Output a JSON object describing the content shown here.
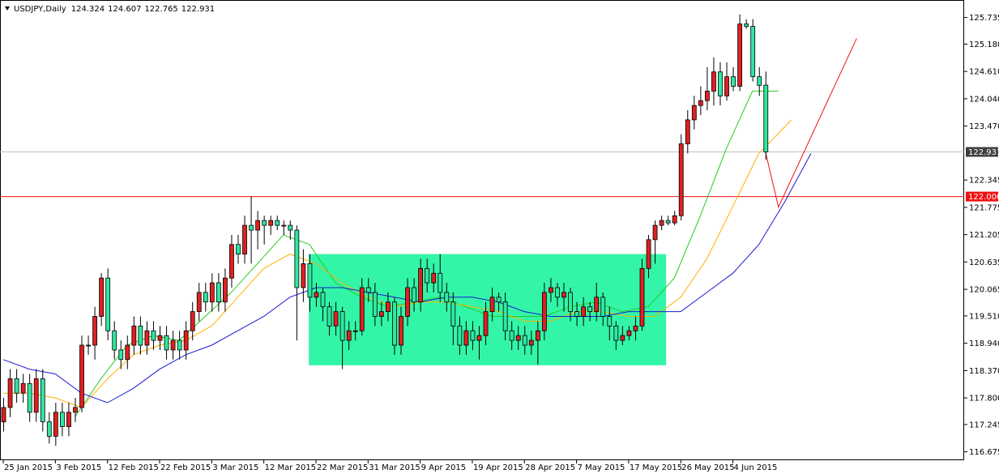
{
  "chart_data": {
    "type": "candlestick",
    "title": "USDJPY,Daily",
    "up_color": "#e02020",
    "down_color": "#30e8a0",
    "ylim": [
      116.5,
      126.1
    ],
    "xlim": [
      -0.5,
      147.5
    ],
    "yticks": [
      {
        "value": 125.735,
        "label": "125.735"
      },
      {
        "value": 125.18,
        "label": "125.180"
      },
      {
        "value": 124.61,
        "label": "124.610"
      },
      {
        "value": 124.04,
        "label": "124.040"
      },
      {
        "value": 123.47,
        "label": "123.470"
      },
      {
        "value": 122.345,
        "label": "122.345"
      },
      {
        "value": 121.775,
        "label": "121.775"
      },
      {
        "value": 121.205,
        "label": "121.205"
      },
      {
        "value": 120.635,
        "label": "120.635"
      },
      {
        "value": 120.065,
        "label": "120.065"
      },
      {
        "value": 119.51,
        "label": "119.510"
      },
      {
        "value": 118.94,
        "label": "118.940"
      },
      {
        "value": 118.37,
        "label": "118.370"
      },
      {
        "value": 117.8,
        "label": "117.800"
      },
      {
        "value": 117.245,
        "label": "117.245"
      },
      {
        "value": 116.675,
        "label": "116.675"
      }
    ],
    "xticks": [
      {
        "value": 0,
        "label": "25 Jan 2015"
      },
      {
        "value": 8,
        "label": "3 Feb 2015"
      },
      {
        "value": 16,
        "label": "12 Feb 2015"
      },
      {
        "value": 24,
        "label": "22 Feb 2015"
      },
      {
        "value": 32,
        "label": "3 Mar 2015"
      },
      {
        "value": 40,
        "label": "12 Mar 2015"
      },
      {
        "value": 48,
        "label": "22 Mar 2015"
      },
      {
        "value": 56,
        "label": "31 Mar 2015"
      },
      {
        "value": 64,
        "label": "9 Apr 2015"
      },
      {
        "value": 72,
        "label": "19 Apr 2015"
      },
      {
        "value": 80,
        "label": "28 Apr 2015"
      },
      {
        "value": 88,
        "label": "7 May 2015"
      },
      {
        "value": 96,
        "label": "17 May 2015"
      },
      {
        "value": 104,
        "label": "26 May 2015"
      },
      {
        "value": 112,
        "label": "4 Jun 2015"
      }
    ],
    "candles": [
      [
        117.3,
        117.8,
        117.1,
        117.6
      ],
      [
        117.6,
        118.4,
        117.4,
        118.2
      ],
      [
        118.2,
        118.4,
        117.7,
        117.9
      ],
      [
        117.9,
        118.3,
        117.7,
        118.1
      ],
      [
        118.1,
        118.3,
        117.3,
        117.5
      ],
      [
        117.5,
        118.4,
        117.3,
        118.2
      ],
      [
        118.2,
        118.4,
        117.1,
        117.3
      ],
      [
        117.3,
        117.5,
        116.85,
        117.0
      ],
      [
        117.0,
        117.7,
        116.8,
        117.5
      ],
      [
        117.5,
        117.7,
        117.0,
        117.2
      ],
      [
        117.2,
        117.7,
        117.0,
        117.5
      ],
      [
        117.5,
        117.8,
        117.3,
        117.6
      ],
      [
        117.6,
        119.1,
        117.5,
        118.9
      ],
      [
        118.9,
        119.1,
        118.7,
        118.9
      ],
      [
        118.9,
        119.7,
        118.6,
        119.5
      ],
      [
        119.5,
        120.4,
        119.3,
        120.3
      ],
      [
        120.3,
        120.5,
        119.0,
        119.2
      ],
      [
        119.2,
        119.4,
        118.6,
        118.8
      ],
      [
        118.8,
        119.0,
        118.4,
        118.6
      ],
      [
        118.6,
        119.1,
        118.4,
        118.9
      ],
      [
        118.9,
        119.5,
        118.7,
        119.3
      ],
      [
        119.3,
        119.5,
        118.7,
        118.9
      ],
      [
        118.9,
        119.4,
        118.7,
        119.2
      ],
      [
        119.2,
        119.4,
        118.8,
        119.0
      ],
      [
        119.0,
        119.3,
        118.8,
        119.1
      ],
      [
        119.1,
        119.3,
        118.6,
        118.8
      ],
      [
        118.8,
        119.2,
        118.6,
        119.0
      ],
      [
        119.0,
        119.2,
        118.6,
        118.8
      ],
      [
        118.8,
        119.4,
        118.6,
        119.2
      ],
      [
        119.2,
        119.8,
        119.0,
        119.6
      ],
      [
        119.6,
        120.2,
        119.4,
        120.0
      ],
      [
        120.0,
        120.2,
        119.6,
        119.8
      ],
      [
        119.8,
        120.4,
        119.6,
        120.2
      ],
      [
        120.2,
        120.4,
        119.6,
        119.8
      ],
      [
        119.8,
        120.5,
        119.6,
        120.3
      ],
      [
        120.3,
        121.2,
        120.1,
        121.0
      ],
      [
        121.0,
        121.2,
        120.6,
        120.8
      ],
      [
        120.8,
        121.6,
        120.6,
        121.4
      ],
      [
        121.4,
        122.0,
        120.6,
        121.3
      ],
      [
        121.3,
        121.7,
        120.9,
        121.5
      ],
      [
        121.5,
        121.6,
        121.0,
        121.4
      ],
      [
        121.4,
        121.6,
        121.2,
        121.5
      ],
      [
        121.5,
        121.6,
        121.3,
        121.4
      ],
      [
        121.4,
        121.5,
        121.2,
        121.4
      ],
      [
        121.4,
        121.5,
        121.1,
        121.3
      ],
      [
        121.3,
        121.4,
        119.0,
        120.1
      ],
      [
        120.1,
        120.9,
        119.8,
        120.6
      ],
      [
        120.6,
        120.8,
        119.6,
        119.9
      ],
      [
        119.9,
        120.2,
        119.7,
        120.0
      ],
      [
        120.0,
        120.1,
        119.4,
        119.7
      ],
      [
        119.7,
        119.8,
        119.1,
        119.3
      ],
      [
        119.3,
        119.8,
        119.1,
        119.6
      ],
      [
        119.6,
        119.7,
        118.4,
        119.0
      ],
      [
        119.0,
        119.4,
        118.8,
        119.2
      ],
      [
        119.2,
        119.4,
        119.0,
        119.2
      ],
      [
        119.2,
        120.3,
        119.1,
        120.1
      ],
      [
        120.1,
        120.3,
        119.8,
        120.0
      ],
      [
        120.0,
        120.2,
        119.3,
        119.5
      ],
      [
        119.5,
        119.8,
        119.3,
        119.6
      ],
      [
        119.6,
        120.0,
        119.4,
        119.8
      ],
      [
        119.8,
        119.9,
        118.7,
        118.9
      ],
      [
        118.9,
        119.7,
        118.7,
        119.5
      ],
      [
        119.5,
        120.3,
        119.3,
        120.1
      ],
      [
        120.1,
        120.3,
        119.6,
        119.8
      ],
      [
        119.8,
        120.7,
        119.6,
        120.5
      ],
      [
        120.5,
        120.7,
        120.0,
        120.2
      ],
      [
        120.2,
        120.6,
        120.0,
        120.4
      ],
      [
        120.4,
        120.8,
        119.8,
        120.0
      ],
      [
        120.0,
        120.2,
        119.6,
        119.8
      ],
      [
        119.8,
        120.0,
        118.9,
        119.3
      ],
      [
        119.3,
        119.5,
        118.7,
        118.9
      ],
      [
        118.9,
        119.4,
        118.7,
        119.2
      ],
      [
        119.2,
        119.4,
        118.8,
        119.0
      ],
      [
        119.0,
        119.3,
        118.6,
        119.1
      ],
      [
        119.1,
        119.8,
        118.9,
        119.6
      ],
      [
        119.6,
        120.1,
        119.4,
        119.9
      ],
      [
        119.9,
        120.0,
        119.6,
        119.8
      ],
      [
        119.8,
        120.0,
        119.0,
        119.2
      ],
      [
        119.2,
        119.4,
        118.8,
        119.0
      ],
      [
        119.0,
        119.3,
        118.8,
        119.1
      ],
      [
        119.1,
        119.3,
        118.7,
        118.9
      ],
      [
        118.9,
        119.2,
        118.7,
        119.0
      ],
      [
        119.0,
        119.4,
        118.5,
        119.2
      ],
      [
        119.2,
        120.2,
        119.0,
        120.0
      ],
      [
        120.0,
        120.3,
        119.8,
        120.1
      ],
      [
        120.1,
        120.2,
        119.7,
        119.9
      ],
      [
        119.9,
        120.2,
        119.6,
        120.0
      ],
      [
        120.0,
        120.1,
        119.4,
        119.6
      ],
      [
        119.6,
        119.8,
        119.3,
        119.5
      ],
      [
        119.5,
        119.9,
        119.3,
        119.7
      ],
      [
        119.7,
        119.8,
        119.4,
        119.6
      ],
      [
        119.6,
        120.2,
        119.4,
        119.9
      ],
      [
        119.9,
        120.0,
        119.3,
        119.5
      ],
      [
        119.5,
        119.7,
        119.0,
        119.3
      ],
      [
        119.3,
        119.4,
        118.8,
        119.0
      ],
      [
        119.0,
        119.3,
        118.9,
        119.1
      ],
      [
        119.1,
        119.3,
        119.0,
        119.2
      ],
      [
        119.2,
        119.5,
        119.0,
        119.3
      ],
      [
        119.3,
        120.7,
        119.2,
        120.5
      ],
      [
        120.5,
        121.2,
        120.3,
        121.1
      ],
      [
        121.1,
        121.5,
        120.6,
        121.4
      ],
      [
        121.4,
        121.6,
        121.3,
        121.5
      ],
      [
        121.5,
        121.6,
        121.4,
        121.45
      ],
      [
        121.45,
        121.7,
        121.4,
        121.6
      ],
      [
        121.6,
        123.3,
        121.5,
        123.1
      ],
      [
        123.1,
        123.8,
        122.9,
        123.6
      ],
      [
        123.6,
        124.1,
        123.4,
        123.9
      ],
      [
        123.9,
        124.3,
        123.7,
        124.0
      ],
      [
        124.0,
        124.7,
        123.8,
        124.2
      ],
      [
        124.2,
        124.9,
        123.9,
        124.6
      ],
      [
        124.6,
        124.8,
        123.9,
        124.1
      ],
      [
        124.1,
        124.8,
        124.0,
        124.5
      ],
      [
        124.5,
        124.7,
        124.2,
        124.3
      ],
      [
        124.3,
        125.8,
        124.2,
        125.6
      ],
      [
        125.6,
        125.7,
        125.5,
        125.55
      ],
      [
        125.55,
        125.7,
        124.4,
        124.5
      ],
      [
        124.5,
        124.7,
        124.1,
        124.32
      ],
      [
        124.324,
        124.607,
        122.765,
        122.931
      ]
    ],
    "lines": [
      {
        "color": "#22cc22",
        "x": [
          11,
          15,
          19,
          23,
          27,
          31,
          35,
          39,
          43,
          47,
          51,
          55,
          59,
          63,
          67,
          71,
          75,
          79,
          83,
          87,
          91,
          95,
          99,
          103,
          107,
          111,
          115,
          119
        ],
        "values": [
          117.4,
          118.2,
          118.9,
          119.1,
          119.0,
          119.5,
          120.0,
          120.6,
          121.2,
          121.0,
          120.2,
          119.9,
          119.7,
          119.8,
          119.9,
          119.7,
          119.5,
          119.5,
          119.5,
          119.7,
          119.8,
          119.6,
          119.7,
          120.3,
          121.6,
          123.0,
          124.2,
          124.2
        ]
      },
      {
        "color": "#ffb000",
        "x": [
          0,
          4,
          8,
          12,
          16,
          20,
          24,
          28,
          32,
          36,
          40,
          44,
          48,
          52,
          56,
          60,
          64,
          68,
          72,
          76,
          80,
          84,
          88,
          92,
          96,
          100,
          104,
          108,
          112,
          116,
          121
        ],
        "values": [
          117.9,
          117.9,
          117.8,
          117.6,
          118.2,
          118.7,
          118.9,
          119.0,
          119.3,
          119.9,
          120.5,
          120.8,
          120.6,
          120.2,
          119.9,
          119.7,
          119.8,
          119.8,
          119.7,
          119.6,
          119.4,
          119.4,
          119.6,
          119.6,
          119.5,
          119.5,
          119.9,
          120.7,
          121.8,
          122.9,
          123.6
        ]
      },
      {
        "color": "#1a1ad0",
        "x": [
          0,
          4,
          8,
          12,
          16,
          20,
          24,
          28,
          32,
          36,
          40,
          44,
          48,
          52,
          56,
          60,
          64,
          68,
          72,
          76,
          80,
          84,
          88,
          92,
          96,
          100,
          104,
          108,
          112,
          116,
          120,
          124
        ],
        "values": [
          118.6,
          118.4,
          118.3,
          117.9,
          117.7,
          118.0,
          118.4,
          118.7,
          118.9,
          119.2,
          119.5,
          119.9,
          120.1,
          120.1,
          120.0,
          119.9,
          119.8,
          119.9,
          119.9,
          119.8,
          119.6,
          119.5,
          119.5,
          119.5,
          119.6,
          119.6,
          119.6,
          120.0,
          120.4,
          121.0,
          121.9,
          122.9
        ]
      },
      {
        "color": "#ee1111",
        "x": [
          117,
          119,
          131
        ],
        "values": [
          122.93,
          121.78,
          125.3
        ]
      }
    ],
    "box": {
      "color": "#33f5a8",
      "x": [
        46.9,
        101.75
      ],
      "y": [
        118.48,
        120.8
      ]
    },
    "hlines": [
      {
        "value": 122.931,
        "color": "#c0c0c0",
        "label_bg": "#404040"
      },
      {
        "value": 122.0,
        "label": "122.000",
        "color": "#ee1111",
        "label_bg": "#ee1111"
      }
    ]
  }
}
